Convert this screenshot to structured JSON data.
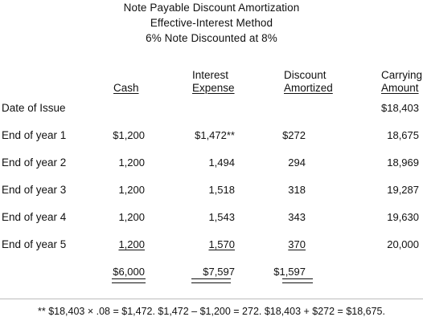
{
  "title": {
    "line1": "Note Payable Discount Amortization",
    "line2": "Effective-Interest Method",
    "line3": "6% Note Discounted at 8%"
  },
  "columns": {
    "cash": "Cash",
    "interest_top": "Interest",
    "interest_bottom": "Expense",
    "discount_top": "Discount",
    "discount_bottom": "Amortized",
    "carrying_top": "Carrying",
    "carrying_bottom": "Amount"
  },
  "rows": [
    {
      "label": "Date of Issue",
      "cash": "",
      "interest": "",
      "discount": "",
      "carrying": "$18,403"
    },
    {
      "label": "End of year 1",
      "cash": "$1,200",
      "interest": "$1,472**",
      "discount": "$272",
      "carrying": "18,675"
    },
    {
      "label": "End of year 2",
      "cash": "1,200",
      "interest": "1,494",
      "discount": "294",
      "carrying": "18,969"
    },
    {
      "label": "End of year 3",
      "cash": "1,200",
      "interest": "1,518",
      "discount": "318",
      "carrying": "19,287"
    },
    {
      "label": "End of year 4",
      "cash": "1,200",
      "interest": "1,543",
      "discount": "343",
      "carrying": "19,630"
    },
    {
      "label": "End of year 5",
      "cash": "1,200",
      "interest": "1,570",
      "discount": "370",
      "carrying": "20,000"
    }
  ],
  "totals": {
    "cash": "$6,000",
    "interest": "$7,597",
    "discount": "$1,597"
  },
  "footnote": "** $18,403 × .08 = $1,472.  $1,472 – $1,200 = 272.  $18,403 + $272 = $18,675."
}
